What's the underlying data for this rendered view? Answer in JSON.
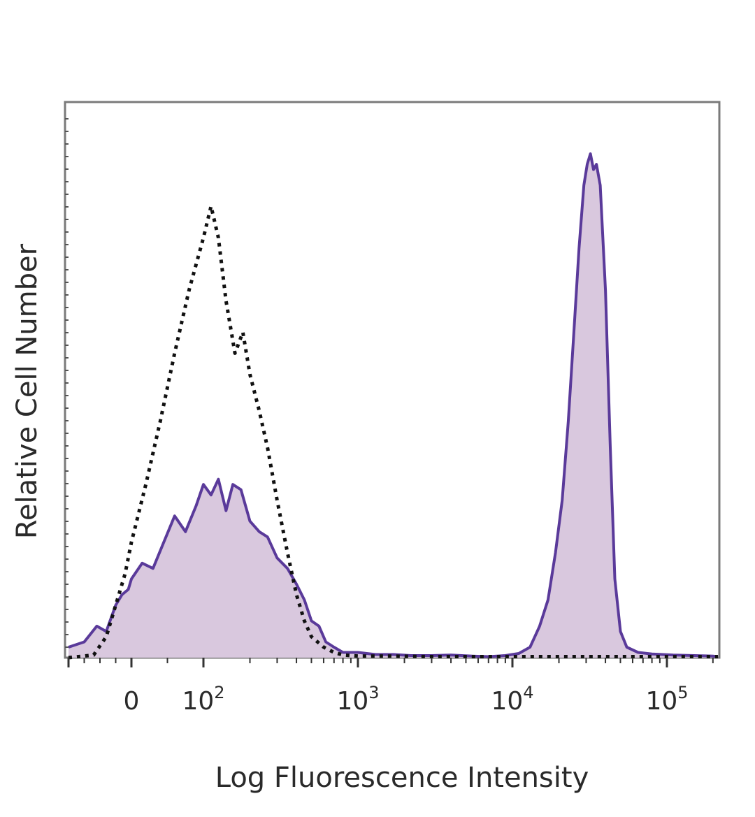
{
  "chart_data": {
    "type": "area",
    "title": "",
    "xlabel": "Log Fluorescence Intensity",
    "ylabel": "Relative Cell Number",
    "x_scale": "biexponential",
    "x_ticks": [
      {
        "value": 0,
        "base": "0",
        "exp": ""
      },
      {
        "value": 100,
        "base": "10",
        "exp": "2"
      },
      {
        "value": 1000,
        "base": "10",
        "exp": "3"
      },
      {
        "value": 10000,
        "base": "10",
        "exp": "4"
      },
      {
        "value": 100000,
        "base": "10",
        "exp": "5"
      }
    ],
    "xlim": [
      -200,
      250000
    ],
    "ylim": [
      0,
      100
    ],
    "grid": false,
    "legend": "none",
    "colors": {
      "stained_line": "#5a3a9a",
      "stained_fill": "#d9c8de",
      "control_line": "#111111",
      "frame": "#7a7a7a"
    },
    "series": [
      {
        "style": "filled-solid",
        "x": [
          -200,
          -150,
          -110,
          -80,
          -50,
          -30,
          -10,
          0,
          15,
          30,
          45,
          60,
          75,
          90,
          100,
          112,
          125,
          140,
          155,
          175,
          200,
          230,
          260,
          300,
          350,
          400,
          450,
          500,
          560,
          620,
          700,
          800,
          1000,
          1300,
          1700,
          2200,
          3000,
          4000,
          5500,
          7000,
          9000,
          11000,
          13000,
          15000,
          17000,
          19000,
          21000,
          23000,
          25000,
          27000,
          29000,
          30500,
          32000,
          33500,
          35000,
          37000,
          40000,
          43000,
          46000,
          50000,
          55000,
          65000,
          80000,
          110000,
          150000,
          200000,
          250000
        ],
        "y": [
          2,
          3,
          6,
          5,
          10,
          12,
          13,
          15,
          18,
          17,
          22,
          27,
          24,
          29,
          33,
          31,
          34,
          28,
          33,
          32,
          26,
          24,
          23,
          19,
          17,
          14,
          11,
          7,
          6,
          3,
          2,
          1,
          1,
          0.6,
          0.6,
          0.4,
          0.4,
          0.5,
          0.3,
          0.2,
          0.4,
          0.8,
          2,
          6,
          11,
          20,
          30,
          45,
          62,
          78,
          90,
          94,
          96,
          93,
          94,
          90,
          70,
          40,
          15,
          5,
          2,
          1,
          0.7,
          0.5,
          0.4,
          0.3,
          0.2
        ]
      },
      {
        "style": "dotted",
        "x": [
          -200,
          -120,
          -80,
          -50,
          -20,
          0,
          20,
          40,
          60,
          80,
          100,
          112,
          125,
          140,
          160,
          180,
          200,
          230,
          260,
          300,
          350,
          400,
          450,
          500,
          600,
          700,
          800,
          1000,
          1500,
          3000,
          10000,
          30000,
          100000,
          250000
        ],
        "y": [
          0,
          0.5,
          4,
          10,
          16,
          22,
          33,
          45,
          58,
          70,
          80,
          86,
          80,
          68,
          58,
          62,
          54,
          47,
          40,
          30,
          20,
          12,
          7,
          4,
          2,
          1,
          0.5,
          0.3,
          0.3,
          0.2,
          0.2,
          0.2,
          0.2,
          0.2
        ]
      }
    ]
  }
}
